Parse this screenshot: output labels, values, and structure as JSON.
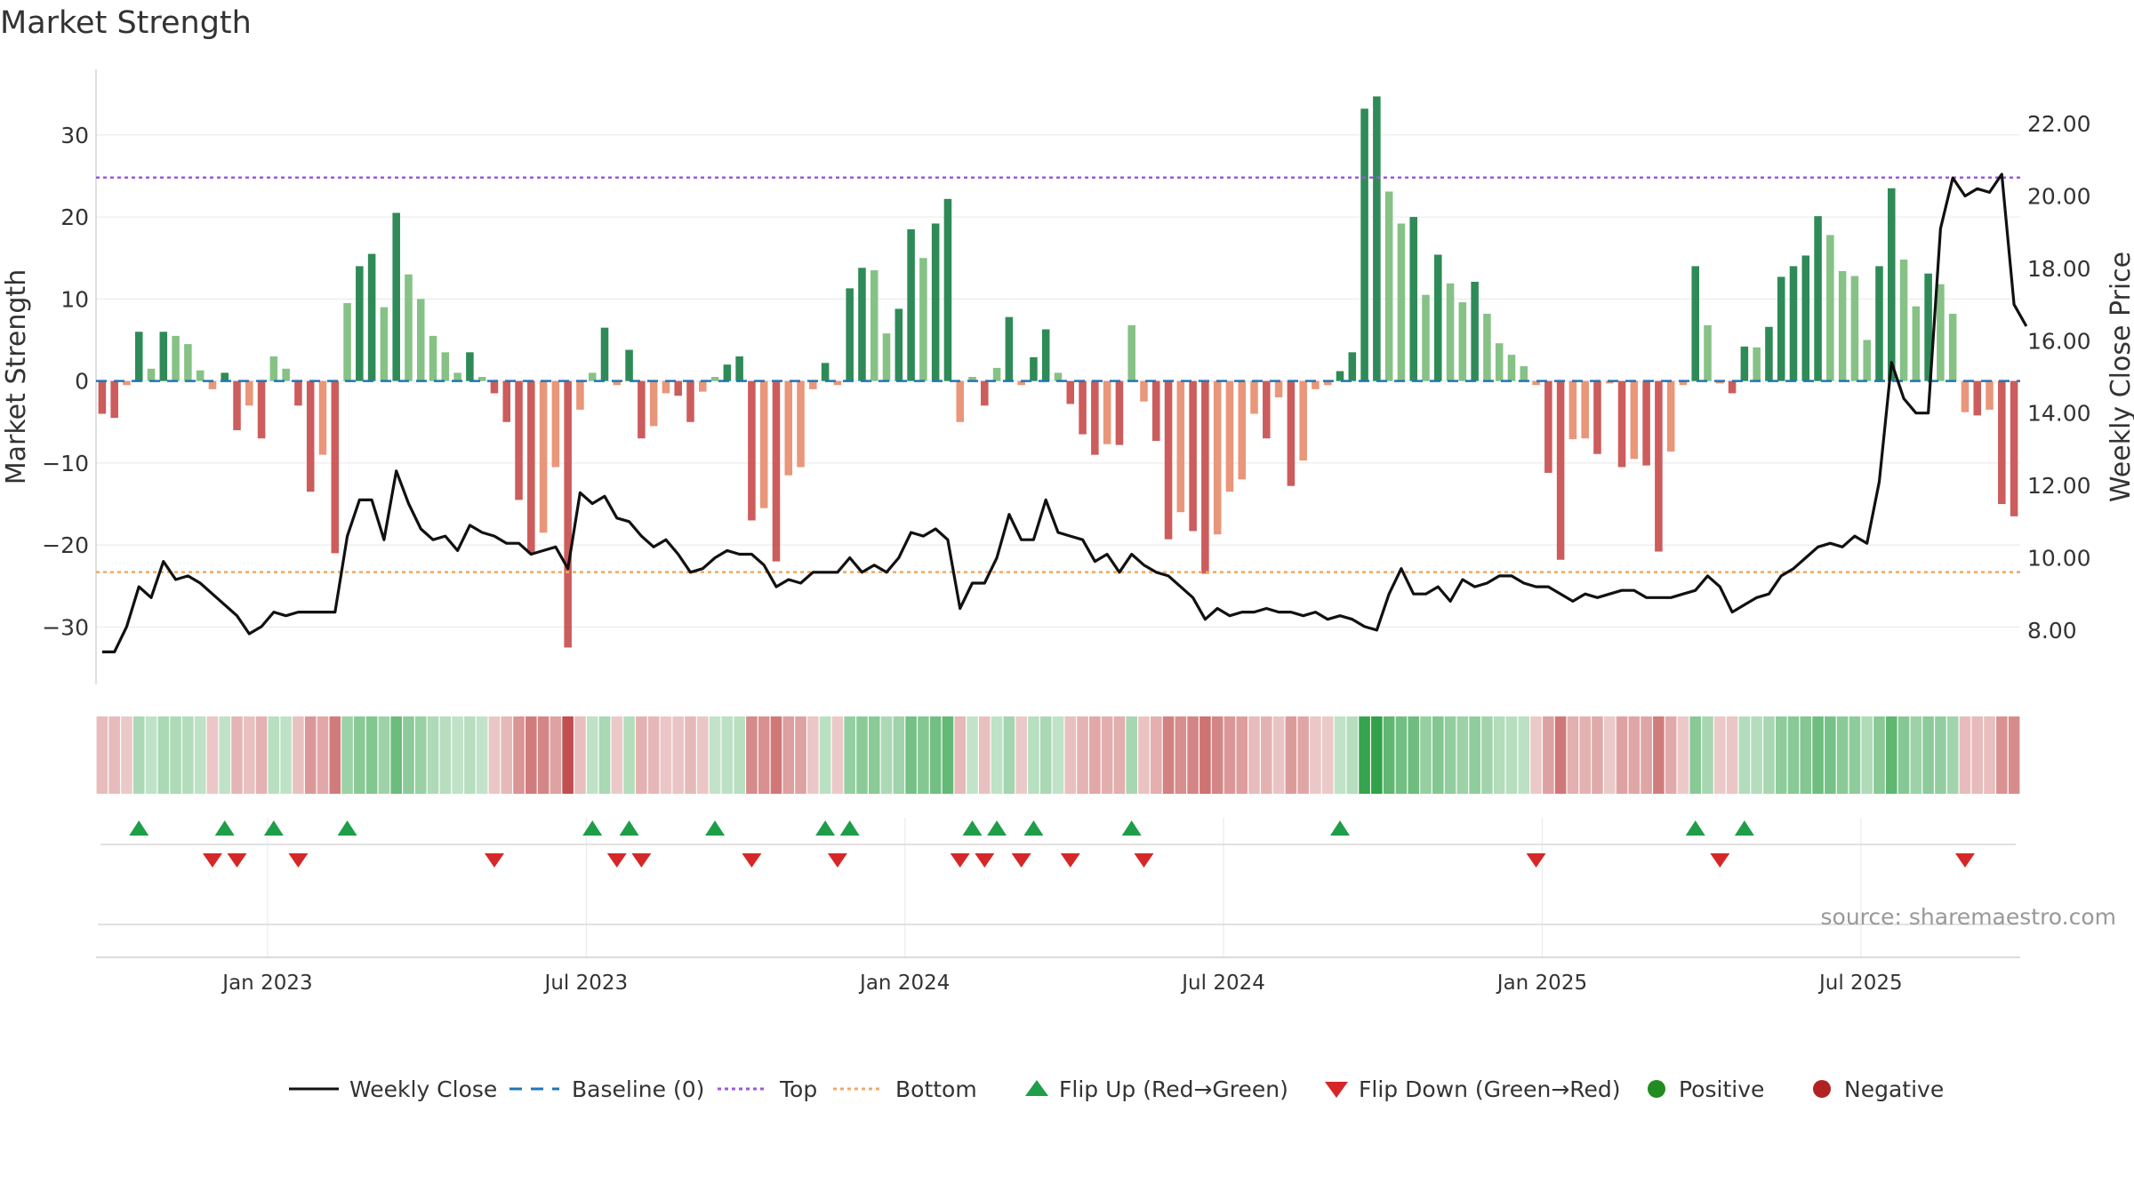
{
  "chart_data": {
    "type": "bar",
    "title": "Market Strength",
    "ylabel_left": "Market Strength",
    "ylabel_right": "Weekly Close Price",
    "ylim_left": [
      -37,
      38
    ],
    "ylim_right": [
      6.5,
      23.5
    ],
    "left_ticks": [
      30,
      20,
      10,
      0,
      -10,
      -20,
      -30
    ],
    "left_tick_labels": [
      "30",
      "20",
      "10",
      "0",
      "−10",
      "−20",
      "−30"
    ],
    "right_ticks": [
      22,
      20,
      18,
      16,
      14,
      12,
      10,
      8
    ],
    "right_tick_labels": [
      "22.00",
      "20.00",
      "18.00",
      "16.00",
      "14.00",
      "12.00",
      "10.00",
      "8.00"
    ],
    "x_tick_labels": [
      "Jan 2023",
      "Jul 2023",
      "Jan 2024",
      "Jul 2024",
      "Jan 2025",
      "Jul 2025"
    ],
    "x_tick_weeks": [
      14,
      40,
      66,
      92,
      118,
      144
    ],
    "top_line": 24.8,
    "bottom_line": -23.3,
    "baseline": 0,
    "strength": [
      -4,
      -4.5,
      -0.5,
      6,
      1.5,
      6,
      5.5,
      4.5,
      1.3,
      -1,
      1,
      -6,
      -3,
      -7,
      3,
      1.5,
      -3,
      -13.5,
      -9,
      -21,
      9.5,
      14,
      15.5,
      9,
      20.5,
      13,
      10,
      5.5,
      3.5,
      1,
      3.5,
      0.5,
      -1.5,
      -5,
      -14.5,
      -21,
      -18.5,
      -10.5,
      -32.5,
      -3.5,
      1,
      6.5,
      -0.5,
      3.8,
      -7,
      -5.5,
      -1.5,
      -1.8,
      -5,
      -1.3,
      0.5,
      2,
      3,
      -17,
      -15.5,
      -22,
      -11.5,
      -10.5,
      -1,
      2.2,
      -0.5,
      11.3,
      13.8,
      13.5,
      5.8,
      8.8,
      18.5,
      15,
      19.2,
      22.2,
      -5,
      0.5,
      -3,
      1.6,
      7.8,
      -0.5,
      2.9,
      6.3,
      1,
      -2.8,
      -6.5,
      -9,
      -7.7,
      -7.8,
      6.8,
      -2.5,
      -7.3,
      -19.3,
      -16,
      -18.3,
      -23.5,
      -18.7,
      -13.5,
      -12,
      -4,
      -7,
      -2,
      -12.8,
      -9.7,
      -1,
      -0.5,
      1.2,
      3.5,
      33.2,
      34.7,
      23.1,
      19.2,
      20,
      10.5,
      15.4,
      11.9,
      9.6,
      12.1,
      8.2,
      4.6,
      3.2,
      1.8,
      -0.5,
      -11.2,
      -21.8,
      -7.1,
      -7,
      -8.9,
      -0.3,
      -10.5,
      -9.5,
      -10.3,
      -20.8,
      -8.6,
      -0.5,
      14,
      6.8,
      -0.3,
      -1.5,
      4.2,
      4.1,
      6.6,
      12.7,
      14,
      15.3,
      20.1,
      17.8,
      13.4,
      12.8,
      5,
      14,
      23.5,
      14.8,
      9.1,
      13.1,
      11.8,
      8.2,
      -3.8,
      -4.2,
      -3.5,
      -15,
      -16.5
    ],
    "weekly_close": [
      7.4,
      7.4,
      8.1,
      9.2,
      8.9,
      9.9,
      9.4,
      9.5,
      9.3,
      9,
      8.7,
      8.4,
      7.9,
      8.1,
      8.5,
      8.4,
      8.5,
      8.5,
      8.5,
      8.5,
      10.6,
      11.6,
      11.6,
      10.5,
      12.4,
      11.5,
      10.8,
      10.5,
      10.6,
      10.2,
      10.9,
      10.7,
      10.6,
      10.4,
      10.4,
      10.1,
      10.2,
      10.3,
      9.7,
      11.8,
      11.5,
      11.7,
      11.1,
      11,
      10.6,
      10.3,
      10.5,
      10.1,
      9.6,
      9.7,
      10,
      10.2,
      10.1,
      10.1,
      9.8,
      9.2,
      9.4,
      9.3,
      9.6,
      9.6,
      9.6,
      10,
      9.6,
      9.8,
      9.6,
      10,
      10.7,
      10.6,
      10.8,
      10.5,
      8.6,
      9.3,
      9.3,
      10,
      11.2,
      10.5,
      10.5,
      11.6,
      10.7,
      10.6,
      10.5,
      9.9,
      10.1,
      9.6,
      10.1,
      9.8,
      9.6,
      9.5,
      9.2,
      8.9,
      8.3,
      8.6,
      8.4,
      8.5,
      8.5,
      8.6,
      8.5,
      8.5,
      8.4,
      8.5,
      8.3,
      8.4,
      8.3,
      8.1,
      8,
      9,
      9.7,
      9,
      9,
      9.2,
      8.8,
      9.4,
      9.2,
      9.3,
      9.5,
      9.5,
      9.3,
      9.2,
      9.2,
      9,
      8.8,
      9,
      8.9,
      9,
      9.1,
      9.1,
      8.9,
      8.9,
      8.9,
      9,
      9.1,
      9.5,
      9.2,
      8.5,
      8.7,
      8.9,
      9,
      9.5,
      9.7,
      10,
      10.3,
      10.4,
      10.3,
      10.6,
      10.4,
      12.1,
      15.4,
      14.4,
      14,
      14,
      19.1,
      20.5,
      20,
      20.2,
      20.1,
      20.6,
      17,
      16.4
    ]
  },
  "legend": [
    {
      "label": "Weekly Close",
      "icon": "line-solid-black"
    },
    {
      "label": "Baseline (0)",
      "icon": "line-dashed-blue"
    },
    {
      "label": "Top",
      "icon": "line-dotted-purple"
    },
    {
      "label": "Bottom",
      "icon": "line-dotted-orange"
    },
    {
      "label": "Flip Up (Red→Green)",
      "icon": "triangle-up-green"
    },
    {
      "label": "Flip Down (Green→Red)",
      "icon": "triangle-down-red"
    },
    {
      "label": "Positive",
      "icon": "circle-green"
    },
    {
      "label": "Negative",
      "icon": "circle-red"
    }
  ],
  "source_text": "source: sharemaestro.com",
  "colors": {
    "pos_dark": "#2e8b57",
    "pos_light": "#86c286",
    "neg_dark": "#cd5c5c",
    "neg_light": "#e9967a",
    "price_line": "#111111",
    "baseline": "#1f77b4",
    "top_line": "#9b59d6",
    "bottom_line": "#f0a868",
    "flip_up": "#1e9e48",
    "flip_down": "#d62728",
    "legend_positive": "#228b22",
    "legend_negative": "#b22222"
  }
}
